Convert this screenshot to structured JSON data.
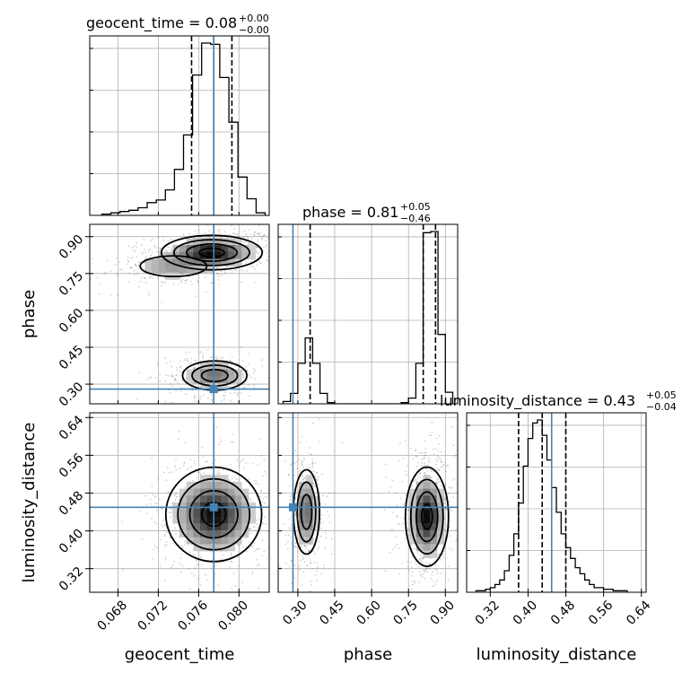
{
  "chart_data": {
    "type": "corner",
    "parameters": [
      {
        "name": "geocent_time",
        "xlabel": "geocent_time",
        "range": [
          0.0652,
          0.083
        ],
        "ticks": [
          0.068,
          0.072,
          0.076,
          0.08
        ],
        "tick_labels": [
          "0.068",
          "0.072",
          "0.076",
          "0.080"
        ],
        "truth": 0.0775,
        "quantiles": [
          0.0753,
          0.0775,
          0.0793
        ],
        "title_main": "geocent_time = 0.08",
        "title_sup": "+0.00",
        "title_sub": "−0.00",
        "hist_edges": [
          0.0664,
          0.0673,
          0.0682,
          0.0691,
          0.07,
          0.0709,
          0.0718,
          0.0727,
          0.0736,
          0.0745,
          0.0754,
          0.0763,
          0.0772,
          0.0781,
          0.079,
          0.0799,
          0.0808,
          0.0817,
          0.0826
        ],
        "hist_values": [
          1,
          2,
          3,
          4,
          6,
          10,
          12,
          20,
          36,
          63,
          110,
          135,
          134,
          108,
          73,
          30,
          13,
          2
        ]
      },
      {
        "name": "phase",
        "xlabel": "phase",
        "ylabel": "phase",
        "range": [
          0.22,
          0.95
        ],
        "ticks": [
          0.3,
          0.45,
          0.6,
          0.75,
          0.9
        ],
        "tick_labels": [
          "0.30",
          "0.45",
          "0.60",
          "0.75",
          "0.90"
        ],
        "truth": 0.28,
        "quantiles": [
          0.35,
          0.81,
          0.86
        ],
        "title_main": "phase = 0.81",
        "title_sup": "+0.05",
        "title_sub": "−0.46",
        "hist_edges": [
          0.24,
          0.27,
          0.3,
          0.33,
          0.36,
          0.39,
          0.42,
          0.45,
          0.48,
          0.51,
          0.54,
          0.57,
          0.6,
          0.63,
          0.66,
          0.69,
          0.72,
          0.75,
          0.78,
          0.81,
          0.84,
          0.87,
          0.9,
          0.93
        ],
        "hist_values": [
          2,
          9,
          35,
          57,
          35,
          9,
          1,
          0,
          0,
          0,
          0,
          0,
          0,
          0,
          0,
          0,
          1,
          5,
          35,
          148,
          149,
          60,
          10
        ]
      },
      {
        "name": "luminosity_distance",
        "xlabel": "luminosity_distance",
        "ylabel": "luminosity_distance",
        "range": [
          0.27,
          0.65
        ],
        "ticks": [
          0.32,
          0.4,
          0.48,
          0.56,
          0.64
        ],
        "tick_labels": [
          "0.32",
          "0.40",
          "0.48",
          "0.56",
          "0.64"
        ],
        "truth": 0.45,
        "quantiles": [
          0.38,
          0.43,
          0.48
        ],
        "title_main": "luminosity_distance = 0.43",
        "title_sup": "+0.05",
        "title_sub": "−0.04",
        "hist_edges": [
          0.29,
          0.3,
          0.31,
          0.32,
          0.33,
          0.34,
          0.35,
          0.36,
          0.37,
          0.38,
          0.39,
          0.4,
          0.41,
          0.42,
          0.43,
          0.44,
          0.45,
          0.46,
          0.47,
          0.48,
          0.49,
          0.5,
          0.51,
          0.52,
          0.53,
          0.54,
          0.55,
          0.56,
          0.57,
          0.58,
          0.59,
          0.6,
          0.61
        ],
        "hist_values": [
          1,
          1,
          2,
          3,
          5,
          8,
          14,
          24,
          38,
          58,
          82,
          100,
          110,
          112,
          102,
          86,
          68,
          52,
          38,
          29,
          22,
          16,
          12,
          8,
          5,
          3,
          3,
          2,
          2,
          1,
          1,
          1
        ]
      }
    ],
    "truth_color": "#4682b4",
    "grid": true,
    "density_blobs": [
      {
        "x_param": "geocent_time",
        "y_param": "phase",
        "cx": 0.0773,
        "cy": 0.835,
        "sx": 0.002,
        "sy": 0.028,
        "weight": 1.0,
        "tilt": 0.006
      },
      {
        "x_param": "geocent_time",
        "y_param": "phase",
        "cx": 0.0735,
        "cy": 0.78,
        "sx": 0.0022,
        "sy": 0.028,
        "weight": 0.35,
        "tilt": 0.008
      },
      {
        "x_param": "geocent_time",
        "y_param": "phase",
        "cx": 0.0776,
        "cy": 0.335,
        "sx": 0.0015,
        "sy": 0.028,
        "weight": 0.55,
        "tilt": 0
      },
      {
        "x_param": "geocent_time",
        "y_param": "luminosity_distance",
        "cx": 0.0775,
        "cy": 0.435,
        "sx": 0.0019,
        "sy": 0.04,
        "weight": 1.0,
        "tilt": 0
      },
      {
        "x_param": "phase",
        "y_param": "luminosity_distance",
        "cx": 0.335,
        "cy": 0.44,
        "sx": 0.025,
        "sy": 0.042,
        "weight": 0.6,
        "tilt": 0
      },
      {
        "x_param": "phase",
        "y_param": "luminosity_distance",
        "cx": 0.825,
        "cy": 0.43,
        "sx": 0.035,
        "sy": 0.042,
        "weight": 1.0,
        "tilt": 0
      }
    ]
  }
}
